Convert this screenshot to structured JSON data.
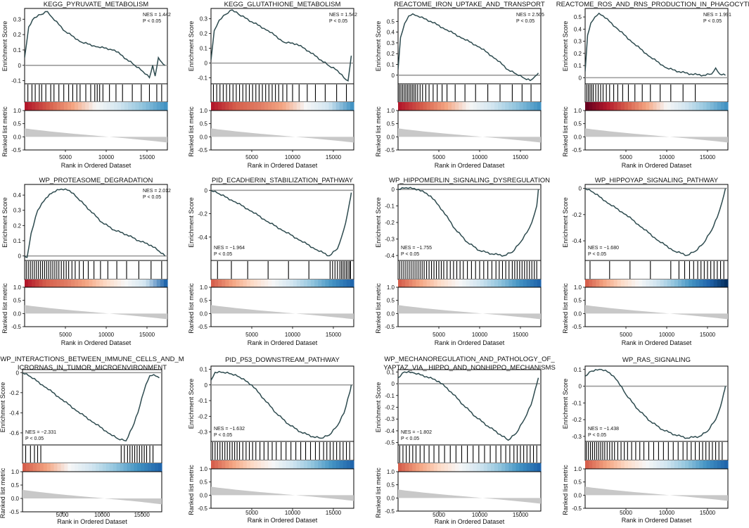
{
  "common": {
    "es_axis_label": "Enrichment Score",
    "metric_axis_label": "Ranked list metric",
    "x_axis_label": "Rank in Ordered Dataset",
    "x_ticks": [
      5000,
      10000,
      15000
    ],
    "metric_ticks": [
      "1.0",
      "0.5",
      "0.0",
      "-0.5"
    ],
    "x_max": 17500,
    "colors": {
      "es_line": "#2e4b4f",
      "zero_line": "#9a9a9a",
      "metric_fill": "#c8c8c8",
      "hit": "#000000"
    }
  },
  "chart_data": [
    {
      "type": "line",
      "title_lines": [
        "KEGG_PYRUVATE_METABOLISM"
      ],
      "nes": "NES = 1.442",
      "p": "P < 0.05",
      "label_pos": "top-right",
      "ylim": [
        -0.12,
        0.37
      ],
      "yticks": [
        0.3,
        0.2,
        0.1,
        0,
        -0.1
      ],
      "es_x": [
        0,
        500,
        1200,
        2000,
        2800,
        3400,
        5000,
        7000,
        9000,
        11000,
        12500,
        13500,
        14500,
        15300,
        15700,
        16000,
        16400,
        16800,
        17200
      ],
      "es_y": [
        0.05,
        0.25,
        0.31,
        0.33,
        0.35,
        0.31,
        0.22,
        0.15,
        0.12,
        0.1,
        0.04,
        0,
        -0.04,
        -0.08,
        0,
        -0.07,
        0.05,
        0.02,
        0
      ],
      "hits": [
        400,
        900,
        1300,
        1800,
        2100,
        2600,
        3200,
        3600,
        4200,
        4800,
        5400,
        5900,
        6400,
        6800,
        7500,
        8100,
        8600,
        8900,
        9200,
        9600,
        10400,
        11200,
        12000,
        13200,
        14300,
        15300,
        16200,
        16800
      ],
      "color_stops": [
        "#b2182b",
        "#d6604d",
        "#f4a582",
        "#f7f7f7",
        "#d1e5f0",
        "#92c5de",
        "#4393c3"
      ]
    },
    {
      "type": "line",
      "title_lines": [
        "KEGG_GLUTATHIONE_METABOLISM"
      ],
      "nes": "NES = 1.542",
      "p": "P < 0.05",
      "label_pos": "top-right",
      "ylim": [
        -0.14,
        0.37
      ],
      "yticks": [
        0.3,
        0.2,
        0.1,
        0,
        -0.1
      ],
      "es_x": [
        0,
        400,
        1000,
        1800,
        2600,
        3400,
        5000,
        7000,
        9000,
        10500,
        12000,
        13500,
        14500,
        15500,
        16300,
        16800,
        17200
      ],
      "es_y": [
        0.02,
        0.22,
        0.29,
        0.33,
        0.36,
        0.33,
        0.28,
        0.22,
        0.14,
        0.13,
        0.08,
        0.02,
        -0.02,
        -0.05,
        -0.1,
        -0.12,
        0.05
      ],
      "hits": [
        300,
        700,
        1100,
        1500,
        1900,
        2300,
        2700,
        3100,
        3500,
        3900,
        4300,
        4700,
        5100,
        5500,
        5900,
        6300,
        6700,
        7100,
        7500,
        7900,
        8300,
        8800,
        9300,
        10000,
        10800,
        11800,
        12800,
        14000,
        15400,
        16600
      ],
      "color_stops": [
        "#b2182b",
        "#d6604d",
        "#e07b63",
        "#f4a582",
        "#f7f7f7",
        "#d1e5f0",
        "#4393c3"
      ]
    },
    {
      "type": "line",
      "title_lines": [
        "REACTOME_IRON_UPTAKE_AND_TRANSPORT"
      ],
      "nes": "NES = 2.505",
      "p": "P < 0.05",
      "label_pos": "top-right",
      "ylim": [
        -0.08,
        0.62
      ],
      "yticks": [
        0.5,
        0.4,
        0.3,
        0.2,
        0.1,
        0
      ],
      "es_x": [
        0,
        300,
        800,
        1300,
        1800,
        2400,
        4000,
        6000,
        8000,
        10000,
        12000,
        13500,
        14500,
        15500,
        16200,
        16800,
        17200
      ],
      "es_y": [
        0.05,
        0.35,
        0.48,
        0.55,
        0.57,
        0.55,
        0.5,
        0.42,
        0.34,
        0.26,
        0.15,
        0.05,
        0.01,
        -0.03,
        -0.05,
        -0.01,
        0.02
      ],
      "hits": [
        150,
        350,
        550,
        750,
        950,
        1150,
        1350,
        1550,
        1750,
        1950,
        2150,
        2400,
        2700,
        3000,
        3400,
        3800,
        4300,
        4800,
        5400,
        6000,
        7000,
        8200,
        9500,
        11000,
        12500,
        14000,
        15200,
        16300
      ],
      "color_stops": [
        "#b2182b",
        "#d6604d",
        "#f4a582",
        "#f7f7f7",
        "#d1e5f0",
        "#92c5de",
        "#4393c3"
      ]
    },
    {
      "type": "line",
      "title_lines": [
        "REACTOME_ROS_AND_RNS_PRODUCTION_IN_PHAGOCYTES"
      ],
      "nes": "NES = 1.991",
      "p": "P < 0.05",
      "label_pos": "top-right",
      "ylim": [
        -0.05,
        0.57
      ],
      "yticks": [
        0.5,
        0.4,
        0.3,
        0.2,
        0.1,
        0
      ],
      "es_x": [
        0,
        300,
        700,
        1200,
        1700,
        2200,
        4000,
        6000,
        8000,
        10000,
        11500,
        13000,
        14500,
        15500,
        16000,
        16500,
        17200
      ],
      "es_y": [
        0.05,
        0.35,
        0.45,
        0.5,
        0.53,
        0.51,
        0.4,
        0.28,
        0.17,
        0.08,
        0.05,
        0.03,
        0.02,
        0.03,
        0.08,
        0.03,
        0.02
      ],
      "hits": [
        200,
        400,
        600,
        800,
        1000,
        1300,
        1600,
        1900,
        2200,
        2600,
        3000,
        3500,
        4000,
        4600,
        5300,
        6100,
        7000,
        8000,
        9200,
        10500,
        12000,
        13500
      ],
      "color_stops": [
        "#67001f",
        "#b2182b",
        "#d6604d",
        "#f4a582",
        "#f7f7f7",
        "#d1e5f0",
        "#92c5de",
        "#4393c3"
      ]
    },
    {
      "type": "line",
      "title_lines": [
        "WP_PROTEASOME_DEGRADATION"
      ],
      "nes": "NES = 2.012",
      "p": "P < 0.05",
      "label_pos": "top-right",
      "ylim": [
        -0.03,
        0.47
      ],
      "yticks": [
        0.4,
        0.3,
        0.2,
        0.1,
        0
      ],
      "es_x": [
        0,
        300,
        800,
        1600,
        2600,
        3500,
        4500,
        5500,
        6500,
        8000,
        9500,
        11000,
        12500,
        14000,
        15500,
        16500,
        17200
      ],
      "es_y": [
        0,
        -0.01,
        0.15,
        0.3,
        0.38,
        0.42,
        0.44,
        0.43,
        0.38,
        0.3,
        0.22,
        0.17,
        0.14,
        0.1,
        0.07,
        0.03,
        0
      ],
      "hits": [
        200,
        450,
        700,
        950,
        1200,
        1450,
        1700,
        1950,
        2200,
        2450,
        2700,
        2950,
        3200,
        3450,
        3700,
        3950,
        4200,
        4500,
        4800,
        5100,
        5400,
        5800,
        6200,
        6700,
        7200,
        7800,
        8500,
        9300,
        10200,
        11300,
        12500,
        14000,
        15500,
        16800
      ],
      "color_stops": [
        "#b2182b",
        "#d6604d",
        "#e07b63",
        "#f4a582",
        "#fddbc7",
        "#f7f7f7",
        "#d1e5f0",
        "#2166ac"
      ]
    },
    {
      "type": "line",
      "title_lines": [
        "PID_ECADHERIN_STABILIZATION_PATHWAY"
      ],
      "nes": "NES = −1.964",
      "p": "P < 0.05",
      "label_pos": "bottom-left",
      "ylim": [
        -0.6,
        0.05
      ],
      "yticks": [
        0,
        -0.2,
        -0.4
      ],
      "es_x": [
        0,
        1000,
        3000,
        5000,
        7000,
        9000,
        11000,
        13000,
        14500,
        15500,
        16000,
        16500,
        17000,
        17200
      ],
      "es_y": [
        0,
        -0.03,
        -0.1,
        -0.18,
        -0.27,
        -0.35,
        -0.43,
        -0.51,
        -0.56,
        -0.5,
        -0.4,
        -0.28,
        -0.1,
        -0.02
      ],
      "hits": [
        800,
        2500,
        4500,
        7000,
        9500,
        12000,
        14600,
        14900,
        15200,
        15500,
        15800,
        16000,
        16200,
        16400,
        16600,
        16800,
        17000,
        17100
      ],
      "color_stops": [
        "#d6604d",
        "#f4a582",
        "#fddbc7",
        "#f7f7f7",
        "#d1e5f0",
        "#92c5de",
        "#4393c3",
        "#2166ac"
      ]
    },
    {
      "type": "line",
      "title_lines": [
        "WP_HIPPOMERLIN_SIGNALING_DYSREGULATION"
      ],
      "nes": "NES = −1.755",
      "p": "P < 0.05",
      "label_pos": "bottom-left",
      "ylim": [
        -0.43,
        0.03
      ],
      "yticks": [
        0,
        -0.1,
        -0.2,
        -0.3,
        -0.4
      ],
      "es_x": [
        0,
        1000,
        2500,
        4000,
        5500,
        7000,
        8500,
        10000,
        11500,
        13000,
        14000,
        15000,
        15800,
        16400,
        17000,
        17200
      ],
      "es_y": [
        0,
        0.01,
        0,
        -0.04,
        -0.13,
        -0.24,
        -0.32,
        -0.37,
        -0.39,
        -0.4,
        -0.38,
        -0.32,
        -0.26,
        -0.2,
        -0.1,
        0
      ],
      "hits": [
        200,
        450,
        700,
        950,
        1200,
        1450,
        1700,
        1950,
        2200,
        2450,
        2700,
        2950,
        3200,
        3500,
        3800,
        4100,
        4400,
        4700,
        5000,
        5300,
        5600,
        6000,
        6400,
        6800,
        7200,
        7600,
        8000,
        8500,
        9000,
        9500,
        10000,
        10500,
        11000,
        11500,
        12000,
        12400,
        12800,
        13200,
        13600,
        14000,
        14300,
        14600,
        14900,
        15200,
        15500,
        15800,
        16100,
        16400,
        16700,
        17000
      ],
      "color_stops": [
        "#d6604d",
        "#f4a582",
        "#fddbc7",
        "#f7f7f7",
        "#d1e5f0",
        "#92c5de",
        "#4393c3",
        "#2166ac"
      ]
    },
    {
      "type": "line",
      "title_lines": [
        "WP_HIPPOYAP_SIGNALING_PATHWAY"
      ],
      "nes": "NES = −1.680",
      "p": "P < 0.05",
      "label_pos": "bottom-left",
      "ylim": [
        -0.55,
        0.03
      ],
      "yticks": [
        0,
        -0.2,
        -0.4
      ],
      "es_x": [
        0,
        1000,
        3000,
        5000,
        7000,
        9000,
        11000,
        12500,
        13500,
        14500,
        15500,
        16200,
        16800,
        17200
      ],
      "es_y": [
        0,
        -0.03,
        -0.12,
        -0.2,
        -0.3,
        -0.4,
        -0.48,
        -0.51,
        -0.48,
        -0.42,
        -0.32,
        -0.22,
        -0.1,
        0
      ],
      "hits": [
        600,
        3000,
        5500,
        8000,
        10500,
        11500,
        12200,
        12800,
        13300,
        13800,
        14200,
        14600,
        15000,
        15400,
        15800,
        16200,
        16600,
        17000
      ],
      "color_stops": [
        "#d6604d",
        "#f4a582",
        "#fddbc7",
        "#f7f7f7",
        "#d1e5f0",
        "#92c5de",
        "#4393c3",
        "#2166ac",
        "#053061"
      ]
    },
    {
      "type": "line",
      "title_lines": [
        "WP_INTERACTIONS_BETWEEN_IMMUNE_CELLS_AND_M",
        "ICRORNAS_IN_TUMOR_MICROENVIRONMENT"
      ],
      "nes": "NES = −2.331",
      "p": "P < 0.05",
      "label_pos": "bottom-left",
      "ylim": [
        -0.72,
        0.03
      ],
      "yticks": [
        0,
        -0.2,
        -0.4,
        -0.6
      ],
      "es_x": [
        0,
        1000,
        3000,
        5000,
        7000,
        9000,
        11000,
        12000,
        13000,
        13800,
        14500,
        15000,
        15500,
        16000,
        16500,
        17000,
        17200
      ],
      "es_y": [
        0,
        -0.04,
        -0.15,
        -0.27,
        -0.39,
        -0.5,
        -0.61,
        -0.66,
        -0.68,
        -0.55,
        -0.4,
        -0.25,
        -0.12,
        -0.03,
        -0.02,
        -0.04,
        -0.05
      ],
      "hits": [
        400,
        1000,
        1500,
        1900,
        2300,
        12400,
        12800,
        13200,
        13500,
        13800,
        14100,
        14400,
        14700,
        15000,
        15300,
        15600,
        16000,
        16400
      ],
      "color_stops": [
        "#d6604d",
        "#f4a582",
        "#f7f7f7",
        "#d1e5f0",
        "#92c5de",
        "#4393c3",
        "#2166ac"
      ]
    },
    {
      "type": "line",
      "title_lines": [
        "PID_P53_DOWNSTREAM_PATHWAY"
      ],
      "nes": "NES = −1.632",
      "p": "P < 0.05",
      "label_pos": "bottom-left",
      "ylim": [
        -0.36,
        0.12
      ],
      "yticks": [
        0.1,
        0,
        -0.1,
        -0.2,
        -0.3
      ],
      "es_x": [
        0,
        500,
        1500,
        2500,
        3500,
        5000,
        6500,
        8000,
        9500,
        11000,
        12500,
        13500,
        14500,
        15500,
        16300,
        17000,
        17200
      ],
      "es_y": [
        0.03,
        0.08,
        0.08,
        0.07,
        0.05,
        0,
        -0.09,
        -0.18,
        -0.25,
        -0.3,
        -0.33,
        -0.34,
        -0.32,
        -0.26,
        -0.18,
        -0.05,
        0
      ],
      "hits": [
        200,
        500,
        800,
        1100,
        1400,
        1700,
        2000,
        2300,
        2600,
        2900,
        3200,
        3500,
        3900,
        4300,
        4700,
        5100,
        5500,
        6000,
        6500,
        7000,
        7500,
        8000,
        8600,
        9200,
        9800,
        10400,
        11000,
        11600,
        12200,
        12800,
        13300,
        13800,
        14200,
        14600,
        15000,
        15400,
        15800,
        16200,
        16600,
        17000
      ],
      "color_stops": [
        "#d6604d",
        "#f4a582",
        "#fddbc7",
        "#f7f7f7",
        "#d1e5f0",
        "#92c5de",
        "#4393c3",
        "#2166ac"
      ]
    },
    {
      "type": "line",
      "title_lines": [
        "WP_MECHANOREGULATION_AND_PATHOLOGY_OF_",
        "YAPTAZ_VIA_ HIPPO_AND_NONHIPPO_MECHANISMS"
      ],
      "nes": "NES = −1.802",
      "p": "P < 0.05",
      "label_pos": "bottom-left",
      "ylim": [
        -0.52,
        0.12
      ],
      "yticks": [
        0.1,
        0,
        -0.1,
        -0.2,
        -0.3,
        -0.4,
        -0.5
      ],
      "es_x": [
        0,
        800,
        2000,
        3500,
        5000,
        6500,
        8000,
        9500,
        11000,
        12500,
        13500,
        14500,
        15500,
        16300,
        16800,
        17200
      ],
      "es_y": [
        0.05,
        0.1,
        0.09,
        0.06,
        0.02,
        -0.07,
        -0.18,
        -0.28,
        -0.36,
        -0.43,
        -0.48,
        -0.42,
        -0.3,
        -0.18,
        -0.05,
        0.05
      ],
      "hits": [
        200,
        600,
        1000,
        1400,
        1800,
        2200,
        2700,
        3200,
        3800,
        4400,
        5000,
        5700,
        6400,
        7100,
        7800,
        8500,
        9200,
        9900,
        10600,
        11300,
        12000,
        12600,
        13200,
        13700,
        14200,
        14600,
        15000,
        15400,
        15800,
        16200,
        16600,
        17000
      ],
      "color_stops": [
        "#d6604d",
        "#f4a582",
        "#fddbc7",
        "#f7f7f7",
        "#d1e5f0",
        "#92c5de",
        "#4393c3",
        "#2166ac"
      ]
    },
    {
      "type": "line",
      "title_lines": [
        "WP_RAS_SIGNALING"
      ],
      "nes": "NES = −1.438",
      "p": "P < 0.05",
      "label_pos": "bottom-left",
      "ylim": [
        -0.33,
        0.12
      ],
      "yticks": [
        0.1,
        0,
        -0.1,
        -0.2,
        -0.3
      ],
      "es_x": [
        0,
        800,
        2000,
        3000,
        4000,
        5000,
        6500,
        8000,
        9500,
        11000,
        12500,
        14000,
        15000,
        16000,
        16600,
        17000,
        17200
      ],
      "es_y": [
        0.06,
        0.09,
        0.1,
        0.08,
        0.03,
        -0.05,
        -0.14,
        -0.21,
        -0.26,
        -0.29,
        -0.31,
        -0.3,
        -0.27,
        -0.2,
        -0.12,
        -0.04,
        0
      ],
      "hits": [
        150,
        400,
        650,
        900,
        1150,
        1400,
        1650,
        1900,
        2150,
        2400,
        2700,
        3000,
        3300,
        3600,
        4000,
        4400,
        4800,
        5200,
        5700,
        6200,
        6700,
        7200,
        7800,
        8400,
        9000,
        9600,
        10200,
        10800,
        11400,
        12000,
        12500,
        13000,
        13500,
        14000,
        14400,
        14800,
        15200,
        15600,
        16000,
        16400,
        16800
      ],
      "color_stops": [
        "#d6604d",
        "#f4a582",
        "#fddbc7",
        "#f7f7f7",
        "#d1e5f0",
        "#92c5de",
        "#4393c3",
        "#2166ac"
      ]
    }
  ]
}
